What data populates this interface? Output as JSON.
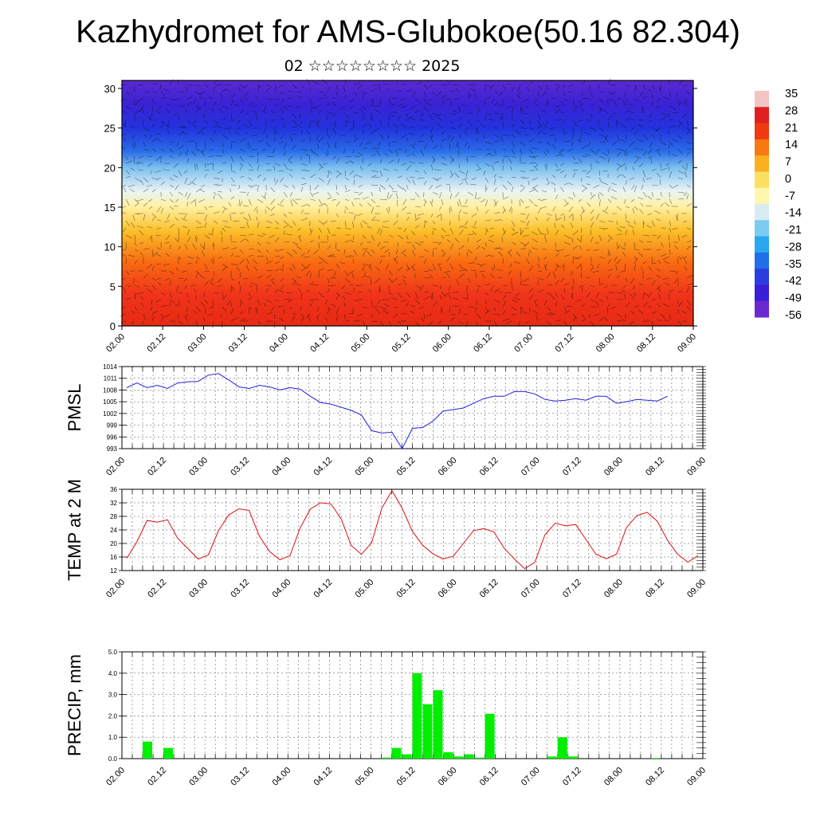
{
  "title": "Kazhydromet for AMS-Glubokoe(50.16 82.304)",
  "subtitle": "02 ☆☆☆☆☆☆☆☆ 2025",
  "time_ticks": [
    "02.00",
    "02.12",
    "03.00",
    "03.12",
    "04.00",
    "04.12",
    "05.00",
    "05.12",
    "06.00",
    "06.12",
    "07.00",
    "07.12",
    "08.00",
    "08.12",
    "09.00"
  ],
  "chart_data": [
    {
      "type": "heatmap",
      "title": "",
      "ylabel": "",
      "y_ticks": [
        0,
        5,
        10,
        15,
        20,
        25,
        30
      ],
      "ylim": [
        0,
        31
      ],
      "colorbar_labels": [
        "35",
        "28",
        "21",
        "14",
        "7",
        "0",
        "-7",
        "-14",
        "-21",
        "-28",
        "-35",
        "-42",
        "-49",
        "-56"
      ],
      "colorbar_colors": [
        "#f2c4c4",
        "#e02020",
        "#f03a10",
        "#f77a10",
        "#fbb020",
        "#fde060",
        "#fff6b0",
        "#d8ecf2",
        "#7ccbf0",
        "#2aa8ee",
        "#1f6fe8",
        "#2c3de0",
        "#3a1fd8",
        "#6a2ad0"
      ],
      "levels": [
        {
          "y": 0,
          "value": 27,
          "color": "#e62a14"
        },
        {
          "y": 4,
          "value": 24,
          "color": "#f0341a"
        },
        {
          "y": 8,
          "value": 15,
          "color": "#f86a12"
        },
        {
          "y": 12,
          "value": 4,
          "color": "#fbbf2a"
        },
        {
          "y": 15,
          "value": -6,
          "color": "#fff0a0"
        },
        {
          "y": 17,
          "value": -16,
          "color": "#eaf4f4"
        },
        {
          "y": 20,
          "value": -32,
          "color": "#7cbff0"
        },
        {
          "y": 22,
          "value": -42,
          "color": "#2a6ee8"
        },
        {
          "y": 25,
          "value": -51,
          "color": "#2233dc"
        },
        {
          "y": 28,
          "value": -54,
          "color": "#3a22d4"
        },
        {
          "y": 31,
          "value": -58,
          "color": "#5a2ad0"
        }
      ]
    },
    {
      "type": "line",
      "ylabel": "PMSL",
      "ylim": [
        993,
        1014
      ],
      "y_ticks": [
        993,
        996,
        999,
        1002,
        1005,
        1008,
        1011,
        1014
      ],
      "color": "#2222dd",
      "x_step_hours": 3,
      "values": [
        1008.6,
        1009.8,
        1008.6,
        1009.2,
        1008.4,
        1009.8,
        1010.1,
        1010.2,
        1011.8,
        1012.2,
        1010.6,
        1008.8,
        1008.4,
        1009.2,
        1008.8,
        1008.0,
        1008.6,
        1008.2,
        1006.4,
        1004.8,
        1004.4,
        1003.6,
        1002.8,
        1001.6,
        997.6,
        997.0,
        997.2,
        993.0,
        998.2,
        998.4,
        1000.0,
        1002.6,
        1003.0,
        1003.4,
        1004.6,
        1005.8,
        1006.4,
        1006.4,
        1007.6,
        1007.6,
        1007.0,
        1005.6,
        1005.2,
        1005.4,
        1005.8,
        1005.4,
        1006.4,
        1006.4,
        1004.6,
        1005.0,
        1005.6,
        1005.4,
        1005.2,
        1006.4
      ]
    },
    {
      "type": "line",
      "ylabel": "TEMP at 2 M",
      "ylim": [
        12,
        36
      ],
      "y_ticks": [
        12,
        16,
        20,
        24,
        28,
        32,
        36
      ],
      "color": "#dd1111",
      "x_step_hours": 3,
      "values": [
        15.6,
        20.5,
        26.8,
        26.3,
        27.0,
        21.5,
        18.5,
        15.4,
        16.6,
        23.8,
        28.4,
        30.2,
        29.8,
        22.2,
        17.6,
        15.2,
        16.4,
        24.6,
        30.2,
        32.0,
        31.7,
        27.4,
        19.4,
        16.8,
        20.2,
        30.4,
        35.6,
        30.4,
        23.6,
        19.5,
        17.0,
        15.4,
        16.2,
        20.0,
        23.8,
        24.4,
        23.4,
        18.6,
        15.4,
        12.6,
        14.4,
        22.6,
        26.0,
        25.2,
        25.6,
        21.2,
        16.8,
        15.5,
        16.8,
        24.8,
        28.2,
        29.2,
        26.6,
        21.0,
        16.8,
        14.5,
        16.4
      ]
    },
    {
      "type": "bar",
      "ylabel": "PRECIP, mm",
      "ylim": [
        0,
        5
      ],
      "y_ticks": [
        "0.0",
        "1.0",
        "2.0",
        "3.0",
        "4.0",
        "5.0"
      ],
      "color": "#00ee00",
      "x_step_hours": 3,
      "values": [
        0,
        0,
        0.8,
        0,
        0.5,
        0,
        0,
        0,
        0,
        0,
        0,
        0,
        0,
        0,
        0,
        0,
        0,
        0,
        0,
        0,
        0,
        0,
        0,
        0,
        0,
        0.05,
        0.5,
        0.2,
        4.0,
        2.55,
        3.2,
        0.3,
        0.1,
        0.2,
        0.05,
        2.1,
        0,
        0,
        0,
        0,
        0,
        0.1,
        1.0,
        0.1,
        0,
        0,
        0,
        0,
        0,
        0,
        0,
        0.03,
        0,
        0,
        0,
        0
      ]
    }
  ]
}
